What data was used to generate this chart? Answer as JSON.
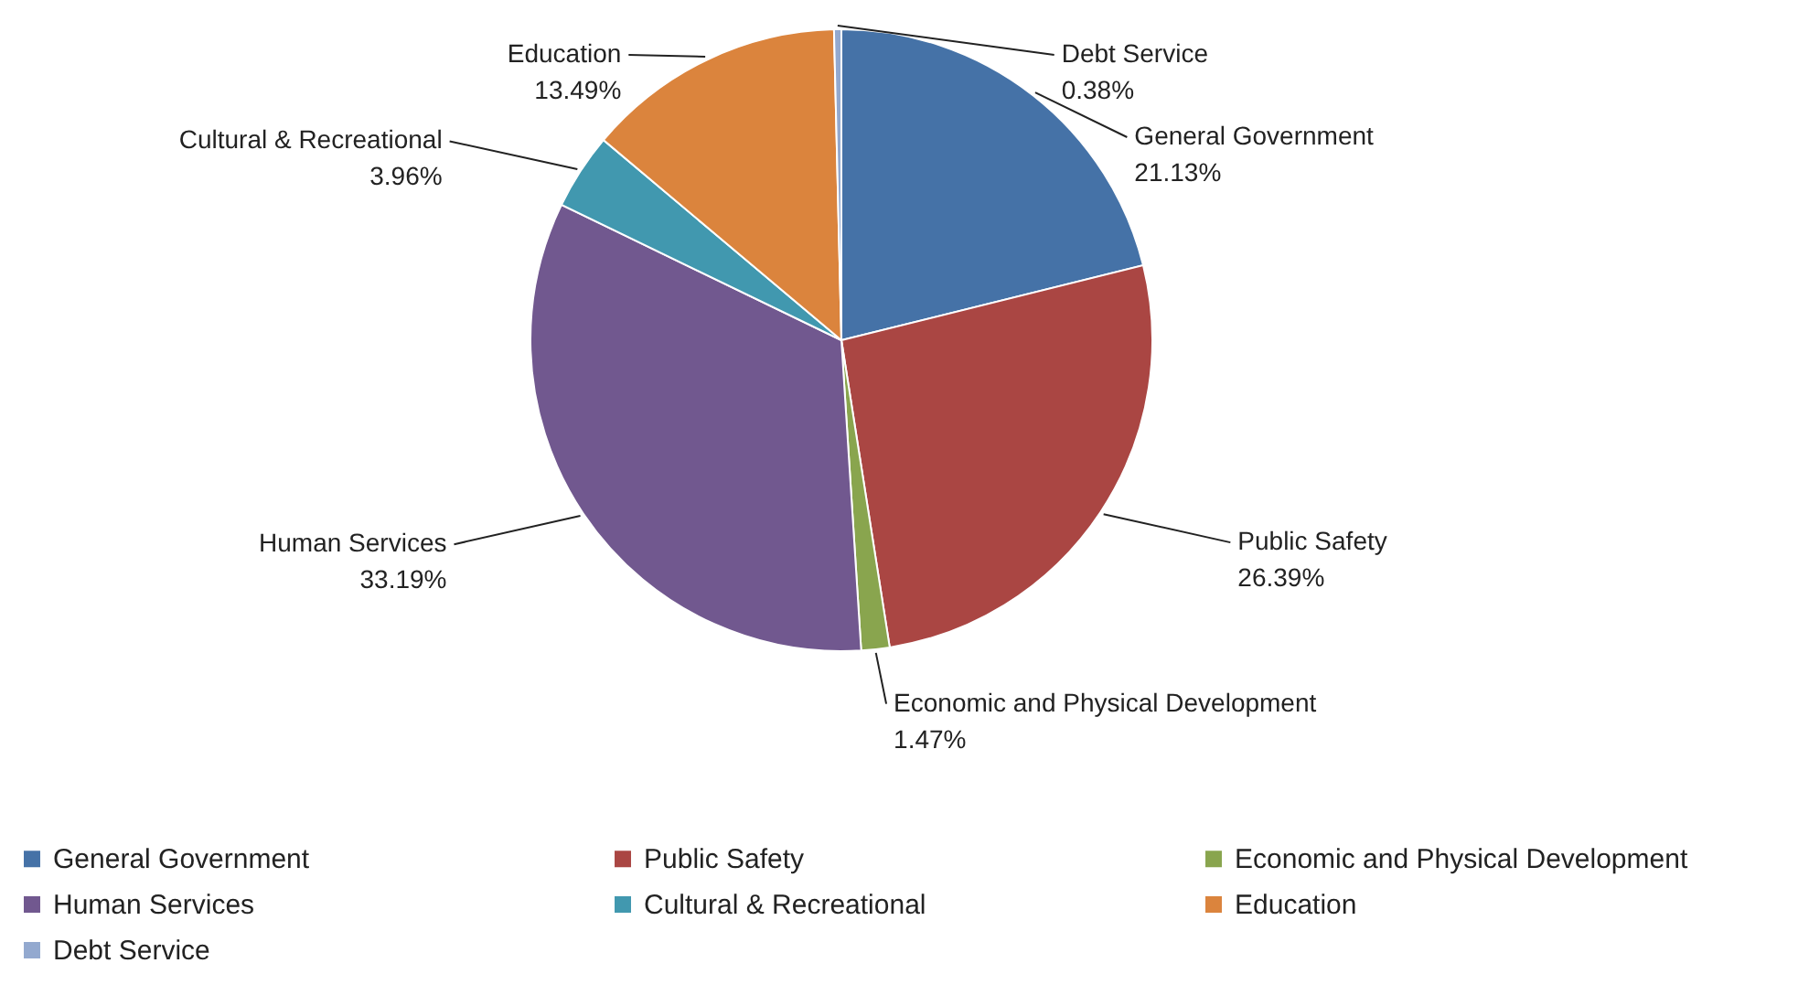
{
  "chart_data": {
    "type": "pie",
    "categories": [
      "General Government",
      "Public Safety",
      "Economic and Physical Development",
      "Human Services",
      "Cultural & Recreational",
      "Education",
      "Debt Service"
    ],
    "values": [
      21.13,
      26.39,
      1.47,
      33.19,
      3.96,
      13.49,
      0.38
    ],
    "value_labels": [
      "21.13%",
      "26.39%",
      "1.47%",
      "33.19%",
      "3.96%",
      "13.49%",
      "0.38%"
    ],
    "colors": [
      "#4572a7",
      "#aa4643",
      "#89a54e",
      "#71588f",
      "#4198af",
      "#db843d",
      "#93a9cf"
    ],
    "legend": "bottom"
  }
}
